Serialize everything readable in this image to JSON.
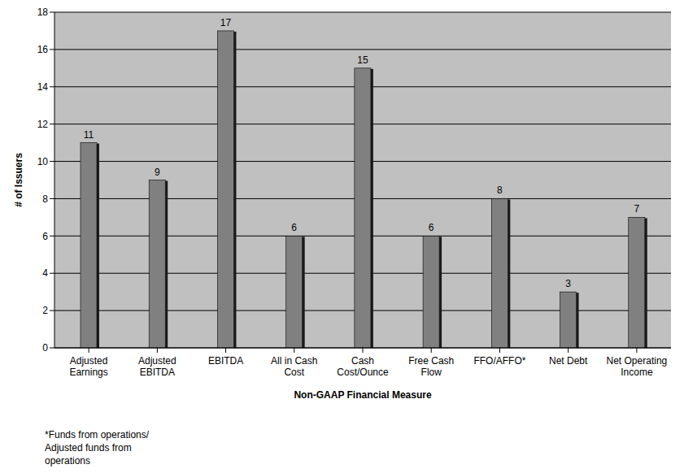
{
  "chart_data": {
    "type": "bar",
    "x_label": "Non-GAAP Financial Measure",
    "y_label": "# of Issuers",
    "categories": [
      "Adjusted Earnings",
      "Adjusted EBITDA",
      "EBITDA",
      "All in Cash Cost",
      "Cash Cost/Ounce",
      "Free Cash Flow",
      "FFO/AFFO*",
      "Net Debt",
      "Net Operating Income"
    ],
    "values": [
      11,
      9,
      17,
      6,
      15,
      6,
      8,
      3,
      7
    ],
    "color": "#808080",
    "ylim": [
      0,
      18
    ],
    "yticks": [
      0,
      2,
      4,
      6,
      8,
      10,
      12,
      14,
      16,
      18
    ],
    "grid": true,
    "data_labels": true,
    "annotations": [
      "*Funds from operations/ Adjusted funds from operations"
    ]
  }
}
